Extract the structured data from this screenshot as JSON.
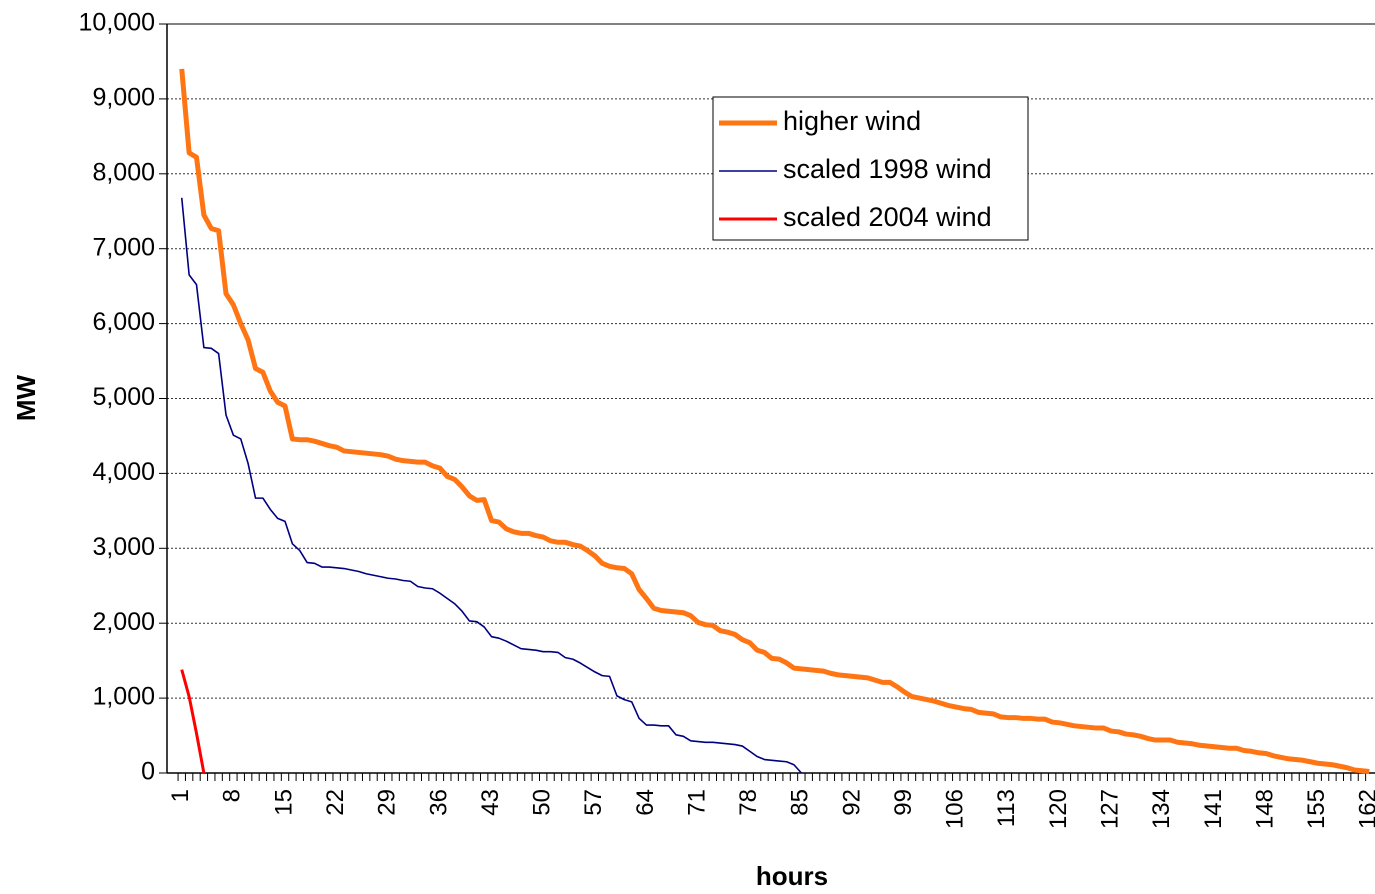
{
  "chart_data": {
    "type": "line",
    "xlabel": "hours",
    "ylabel": "MW",
    "x": [
      1,
      2,
      3,
      4,
      5,
      6,
      7,
      8,
      9,
      10,
      11,
      12,
      13,
      14,
      15,
      16,
      17,
      18,
      19,
      20,
      21,
      22,
      23,
      24,
      25,
      26,
      27,
      28,
      29,
      30,
      31,
      32,
      33,
      34,
      35,
      36,
      37,
      38,
      39,
      40,
      41,
      42,
      43,
      44,
      45,
      46,
      47,
      48,
      49,
      50,
      51,
      52,
      53,
      54,
      55,
      56,
      57,
      58,
      59,
      60,
      61,
      62,
      63,
      64,
      65,
      66,
      67,
      68,
      69,
      70,
      71,
      72,
      73,
      74,
      75,
      76,
      77,
      78,
      79,
      80,
      81,
      82,
      83,
      84,
      85,
      86,
      87,
      88,
      89,
      90,
      91,
      92,
      93,
      94,
      95,
      96,
      97,
      98,
      99,
      100,
      101,
      102,
      103,
      104,
      105,
      106,
      107,
      108,
      109,
      110,
      111,
      112,
      113,
      114,
      115,
      116,
      117,
      118,
      119,
      120,
      121,
      122,
      123,
      124,
      125,
      126,
      127,
      128,
      129,
      130,
      131,
      132,
      133,
      134,
      135,
      136,
      137,
      138,
      139,
      140,
      141,
      142,
      143,
      144,
      145,
      146,
      147,
      148,
      149,
      150,
      151,
      152,
      153,
      154,
      155,
      156,
      157,
      158,
      159,
      160,
      161,
      162
    ],
    "series": [
      {
        "name": "higher wind",
        "color": "#ff7514",
        "width": 5,
        "values": [
          9400,
          8280,
          8220,
          7450,
          7270,
          7240,
          6400,
          6250,
          6000,
          5780,
          5400,
          5350,
          5100,
          4950,
          4900,
          4460,
          4450,
          4450,
          4430,
          4400,
          4370,
          4350,
          4300,
          4290,
          4280,
          4270,
          4260,
          4250,
          4230,
          4190,
          4170,
          4160,
          4150,
          4150,
          4100,
          4070,
          3960,
          3920,
          3820,
          3700,
          3640,
          3650,
          3370,
          3350,
          3260,
          3220,
          3200,
          3200,
          3170,
          3150,
          3100,
          3080,
          3080,
          3050,
          3030,
          2970,
          2900,
          2800,
          2760,
          2740,
          2730,
          2660,
          2450,
          2330,
          2200,
          2170,
          2160,
          2150,
          2140,
          2100,
          2010,
          1980,
          1970,
          1900,
          1880,
          1850,
          1780,
          1740,
          1640,
          1610,
          1530,
          1520,
          1470,
          1400,
          1390,
          1380,
          1370,
          1360,
          1330,
          1310,
          1300,
          1290,
          1280,
          1270,
          1240,
          1210,
          1210,
          1150,
          1080,
          1020,
          1000,
          980,
          960,
          930,
          900,
          880,
          860,
          850,
          810,
          800,
          790,
          750,
          740,
          740,
          730,
          730,
          720,
          720,
          680,
          670,
          650,
          630,
          620,
          610,
          600,
          600,
          560,
          550,
          520,
          510,
          490,
          460,
          440,
          440,
          440,
          410,
          400,
          390,
          370,
          360,
          350,
          340,
          330,
          330,
          300,
          290,
          270,
          260,
          230,
          210,
          190,
          180,
          170,
          150,
          130,
          120,
          110,
          90,
          70,
          40,
          30,
          20
        ]
      },
      {
        "name": "scaled 1998 wind",
        "color": "#000080",
        "width": 1.6,
        "values": [
          7680,
          6650,
          6520,
          5680,
          5670,
          5600,
          4780,
          4510,
          4460,
          4130,
          3670,
          3670,
          3520,
          3400,
          3360,
          3060,
          2970,
          2810,
          2800,
          2750,
          2750,
          2740,
          2730,
          2710,
          2690,
          2660,
          2640,
          2620,
          2600,
          2590,
          2570,
          2560,
          2490,
          2470,
          2460,
          2400,
          2330,
          2260,
          2160,
          2030,
          2020,
          1950,
          1820,
          1800,
          1760,
          1710,
          1660,
          1650,
          1640,
          1620,
          1620,
          1610,
          1540,
          1520,
          1470,
          1410,
          1350,
          1300,
          1290,
          1030,
          980,
          950,
          730,
          640,
          640,
          630,
          630,
          510,
          490,
          430,
          420,
          410,
          410,
          400,
          390,
          380,
          360,
          290,
          220,
          180,
          170,
          160,
          150,
          110,
          0,
          null,
          null,
          null,
          null,
          null,
          null,
          null,
          null,
          null,
          null,
          null,
          null,
          null,
          null,
          null,
          null,
          null,
          null,
          null,
          null,
          null,
          null,
          null,
          null,
          null,
          null,
          null,
          null,
          null,
          null,
          null,
          null,
          null,
          null,
          null,
          null,
          null,
          null,
          null,
          null,
          null,
          null,
          null,
          null,
          null,
          null,
          null,
          null,
          null,
          null,
          null,
          null,
          null,
          null,
          null,
          null,
          null,
          null,
          null,
          null,
          null,
          null,
          null,
          null,
          null,
          null,
          null,
          null,
          null,
          null,
          null,
          null,
          null,
          null,
          null,
          null,
          null
        ]
      },
      {
        "name": "scaled 2004 wind",
        "color": "#ff0000",
        "width": 3,
        "values": [
          1380,
          1020,
          530,
          0,
          null,
          null,
          null,
          null,
          null,
          null,
          null,
          null,
          null,
          null,
          null,
          null,
          null,
          null,
          null,
          null,
          null,
          null,
          null,
          null,
          null,
          null,
          null,
          null,
          null,
          null,
          null,
          null,
          null,
          null,
          null,
          null,
          null,
          null,
          null,
          null,
          null,
          null,
          null,
          null,
          null,
          null,
          null,
          null,
          null,
          null,
          null,
          null,
          null,
          null,
          null,
          null,
          null,
          null,
          null,
          null,
          null,
          null,
          null,
          null,
          null,
          null,
          null,
          null,
          null,
          null,
          null,
          null,
          null,
          null,
          null,
          null,
          null,
          null,
          null,
          null,
          null,
          null,
          null,
          null,
          null,
          null,
          null,
          null,
          null,
          null,
          null,
          null,
          null,
          null,
          null,
          null,
          null,
          null,
          null,
          null,
          null,
          null,
          null,
          null,
          null,
          null,
          null,
          null,
          null,
          null,
          null,
          null,
          null,
          null,
          null,
          null,
          null,
          null,
          null,
          null,
          null,
          null,
          null,
          null,
          null,
          null,
          null,
          null,
          null,
          null,
          null,
          null,
          null,
          null,
          null,
          null,
          null,
          null,
          null,
          null,
          null,
          null,
          null,
          null,
          null,
          null,
          null,
          null,
          null,
          null,
          null,
          null,
          null,
          null,
          null,
          null,
          null,
          null,
          null,
          null,
          null,
          null
        ]
      }
    ],
    "xlim": [
      -1,
      162.5
    ],
    "xticks": [
      1,
      8,
      15,
      22,
      29,
      36,
      43,
      50,
      57,
      64,
      71,
      78,
      85,
      92,
      99,
      106,
      113,
      120,
      127,
      134,
      141,
      148,
      155,
      162
    ],
    "ylim": [
      0,
      10000
    ],
    "yticks": [
      0,
      {
        "value": 1000,
        "label": "1,000"
      },
      {
        "value": 2000,
        "label": "2,000"
      },
      {
        "value": 3000,
        "label": "3,000"
      },
      {
        "value": 4000,
        "label": "4,000"
      },
      {
        "value": 5000,
        "label": "5,000"
      },
      {
        "value": 6000,
        "label": "6,000"
      },
      {
        "value": 7000,
        "label": "7,000"
      },
      {
        "value": 8000,
        "label": "8,000"
      },
      {
        "value": 9000,
        "label": "9,000"
      },
      {
        "value": 10000,
        "label": "10,000"
      }
    ],
    "grid": true,
    "legend": "upper right"
  }
}
